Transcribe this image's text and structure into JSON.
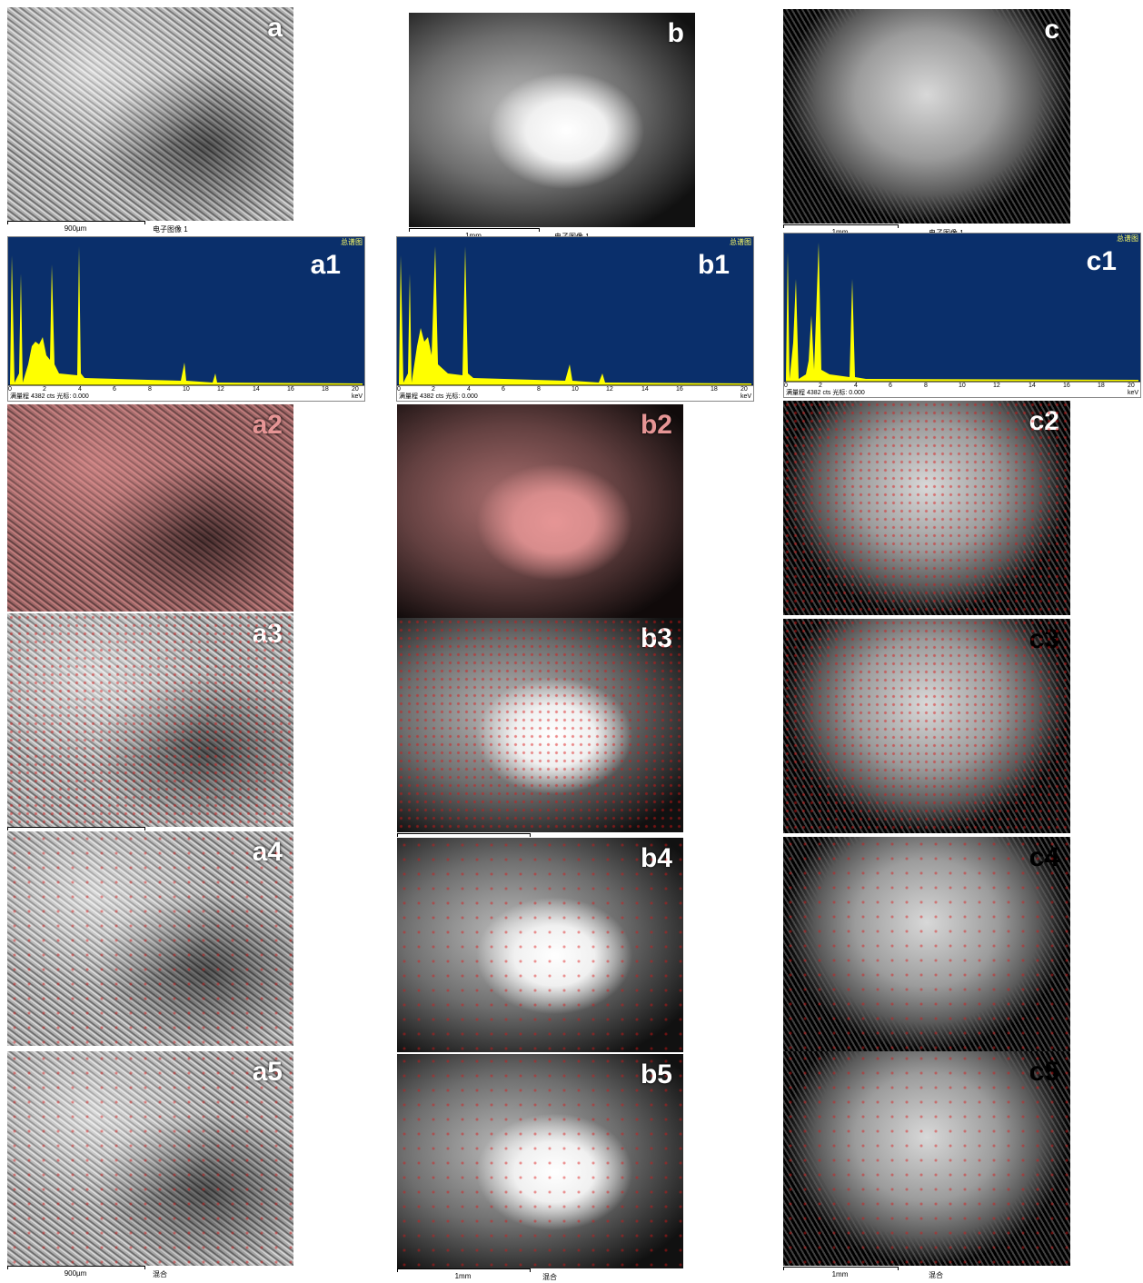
{
  "panels": {
    "a": "a",
    "b": "b",
    "c": "c",
    "a1": "a1",
    "b1": "b1",
    "c1": "c1",
    "a2": "a2",
    "b2": "b2",
    "c2": "c2",
    "a3": "a3",
    "b3": "b3",
    "c3": "c3",
    "a4": "a4",
    "b4": "b4",
    "c4": "c4",
    "a5": "a5",
    "b5": "b5",
    "c5": "c5"
  },
  "scale": {
    "a": "900µm",
    "b": "1mm",
    "c": "1mm",
    "image_caption": "电子图像 1",
    "mix_caption": "混合"
  },
  "spectrum": {
    "title": "总谱图",
    "unit": "keV",
    "ticks": [
      "0",
      "2",
      "4",
      "6",
      "8",
      "10",
      "12",
      "14",
      "16",
      "18",
      "20"
    ],
    "footer_a": "满量程 4382 cts 光标: 0.000",
    "footer_b": "满量程 4382 cts 光标: 0.000",
    "footer_c": "满量程 4382 cts 光标: 0.000"
  },
  "colors": {
    "spectrum_bg": "#0a2f6b",
    "spectrum_fill": "#ffff00",
    "map_red": "#d41414"
  }
}
